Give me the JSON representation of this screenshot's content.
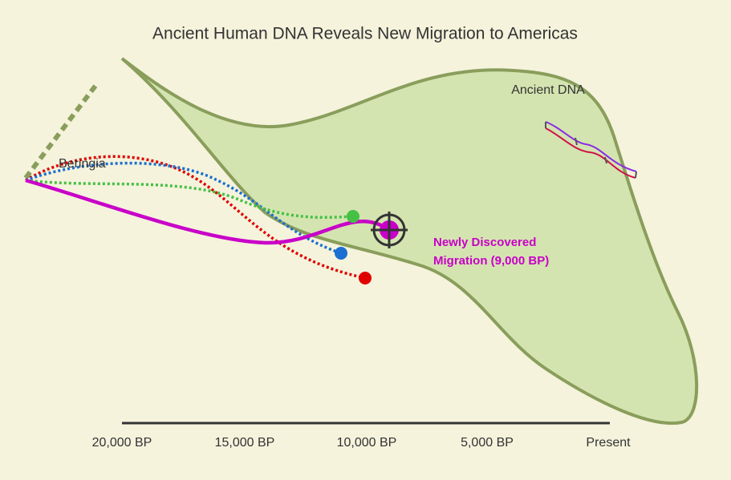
{
  "title": "Ancient Human DNA Reveals New Migration to Americas",
  "labels": {
    "beringia": "Beringia",
    "ancient_dna": "Ancient DNA"
  },
  "annotation": {
    "lines": [
      "Newly Discovered",
      "Migration (9,000 BP)"
    ]
  },
  "timeline": {
    "ticks": [
      "20,000 BP",
      "15,000 BP",
      "10,000 BP",
      "5,000 BP",
      "Present"
    ]
  }
}
